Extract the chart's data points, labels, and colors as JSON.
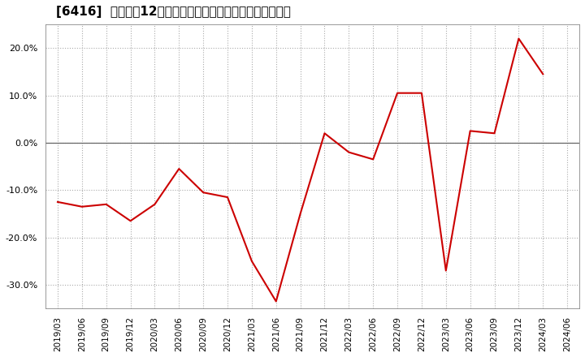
{
  "title": "[6416]  売上高の12か月移動合計の対前年同期増減率の推移",
  "x_labels": [
    "2019/03",
    "2019/06",
    "2019/09",
    "2019/12",
    "2020/03",
    "2020/06",
    "2020/09",
    "2020/12",
    "2021/03",
    "2021/06",
    "2021/09",
    "2021/12",
    "2022/03",
    "2022/06",
    "2022/09",
    "2022/12",
    "2023/03",
    "2023/06",
    "2023/09",
    "2023/12",
    "2024/03",
    "2024/06"
  ],
  "y_values": [
    -12.5,
    -13.5,
    -13.0,
    -16.5,
    -13.0,
    -5.5,
    -10.5,
    -11.5,
    -25.0,
    -33.5,
    -15.0,
    2.0,
    -2.0,
    -3.5,
    10.5,
    10.5,
    -27.0,
    2.5,
    2.0,
    22.0,
    14.5,
    null
  ],
  "line_color": "#cc0000",
  "bg_color": "#ffffff",
  "plot_bg_color": "#ffffff",
  "grid_color": "#aaaaaa",
  "ylim": [
    -35,
    25
  ],
  "yticks": [
    -30,
    -20,
    -10,
    0,
    10,
    20
  ],
  "title_fontsize": 11,
  "tick_fontsize": 7.5
}
